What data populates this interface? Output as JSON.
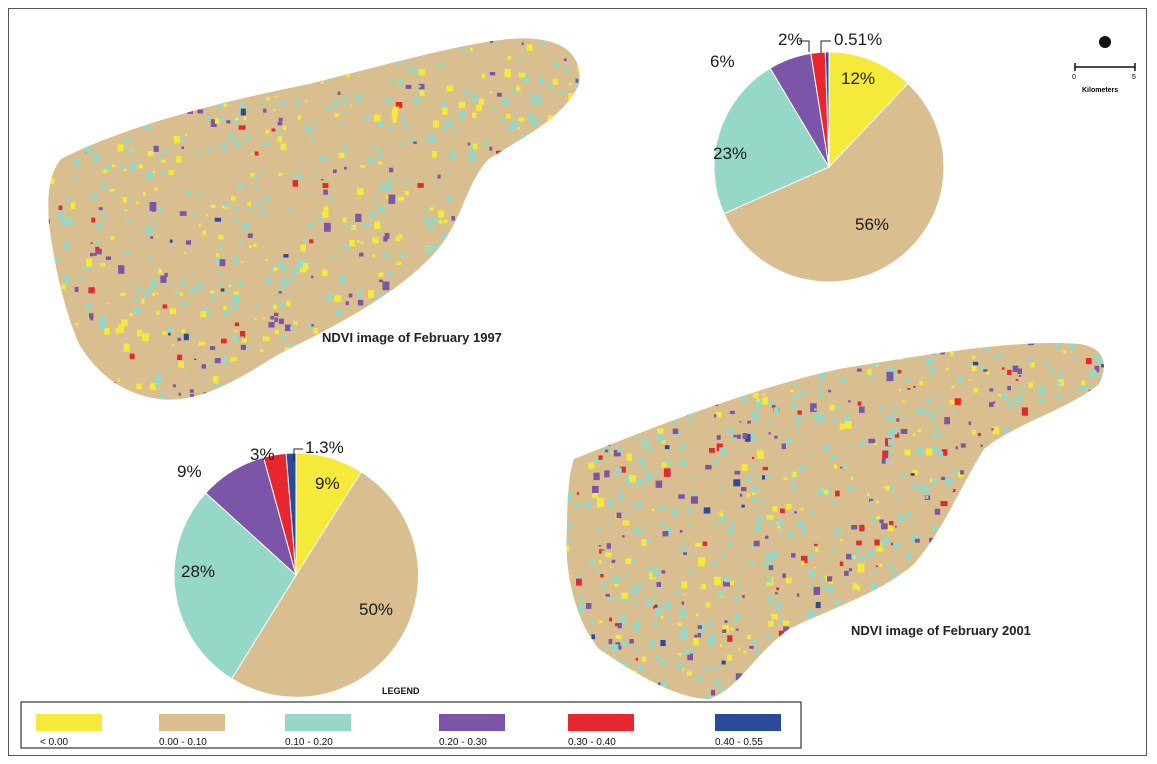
{
  "map_1997": {
    "title": "NDVI image of February 1997"
  },
  "map_2001": {
    "title": "NDVI image of February 2001"
  },
  "scale_bar": {
    "label": "Kilometers",
    "tick_left": "0",
    "tick_right": "5"
  },
  "legend": {
    "title": "LEGEND",
    "classes": [
      {
        "label": "< 0.00",
        "color": "#f5e93a"
      },
      {
        "label": "0.00 - 0.10",
        "color": "#d9bf8f"
      },
      {
        "label": "0.10 - 0.20",
        "color": "#95d8c8"
      },
      {
        "label": "0.20 - 0.30",
        "color": "#7b55a8"
      },
      {
        "label": "0.30 - 0.40",
        "color": "#e8262d"
      },
      {
        "label": "0.40 - 0.55",
        "color": "#2a4a9a"
      }
    ]
  },
  "chart_data": [
    {
      "type": "pie",
      "categories": [
        "< 0.00",
        "0.00 - 0.10",
        "0.10 - 0.20",
        "0.20 - 0.30",
        "0.30 - 0.40",
        "0.40 - 0.55"
      ],
      "labels": [
        "12%",
        "56%",
        "23%",
        "6%",
        "2%",
        "0.51%"
      ],
      "values": [
        12,
        56,
        23,
        6,
        2,
        0.51
      ]
    },
    {
      "type": "pie",
      "categories": [
        "< 0.00",
        "0.00 - 0.10",
        "0.10 - 0.20",
        "0.20 - 0.30",
        "0.30 - 0.40",
        "0.40 - 0.55"
      ],
      "labels": [
        "9%",
        "50%",
        "28%",
        "9%",
        "3%",
        "1.3%"
      ],
      "values": [
        9,
        50,
        28,
        9,
        3,
        1.3
      ]
    }
  ]
}
